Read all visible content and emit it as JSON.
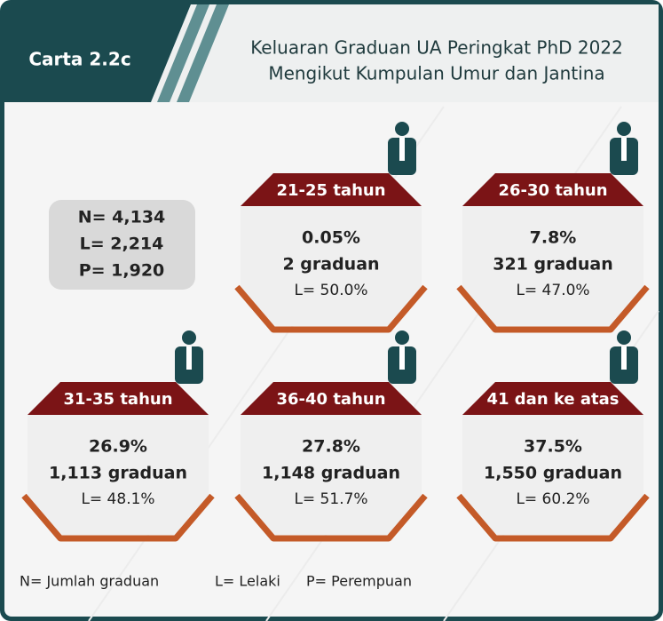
{
  "header": {
    "label": "Carta 2.2c",
    "title_line1": "Keluaran Graduan UA Peringkat PhD 2022",
    "title_line2": "Mengikut Kumpulan Umur dan Jantina"
  },
  "summary": [
    "N= 4,134",
    "L= 2,214",
    "P= 1,920"
  ],
  "cards": [
    {
      "label": "21-25 tahun",
      "percent": "0.05%",
      "graduates": "2 graduan",
      "male": "L= 50.0%"
    },
    {
      "label": "26-30 tahun",
      "percent": "7.8%",
      "graduates": "321 graduan",
      "male": "L= 47.0%"
    },
    {
      "label": "31-35 tahun",
      "percent": "26.9%",
      "graduates": "1,113 graduan",
      "male": "L= 48.1%"
    },
    {
      "label": "36-40 tahun",
      "percent": "27.8%",
      "graduates": "1,148 graduan",
      "male": "L= 51.7%"
    },
    {
      "label": "41 dan ke atas",
      "percent": "37.5%",
      "graduates": "1,550 graduan",
      "male": "L= 60.2%"
    }
  ],
  "legend": [
    "N= Jumlah graduan",
    "L= Lelaki",
    "P= Perempuan"
  ]
}
